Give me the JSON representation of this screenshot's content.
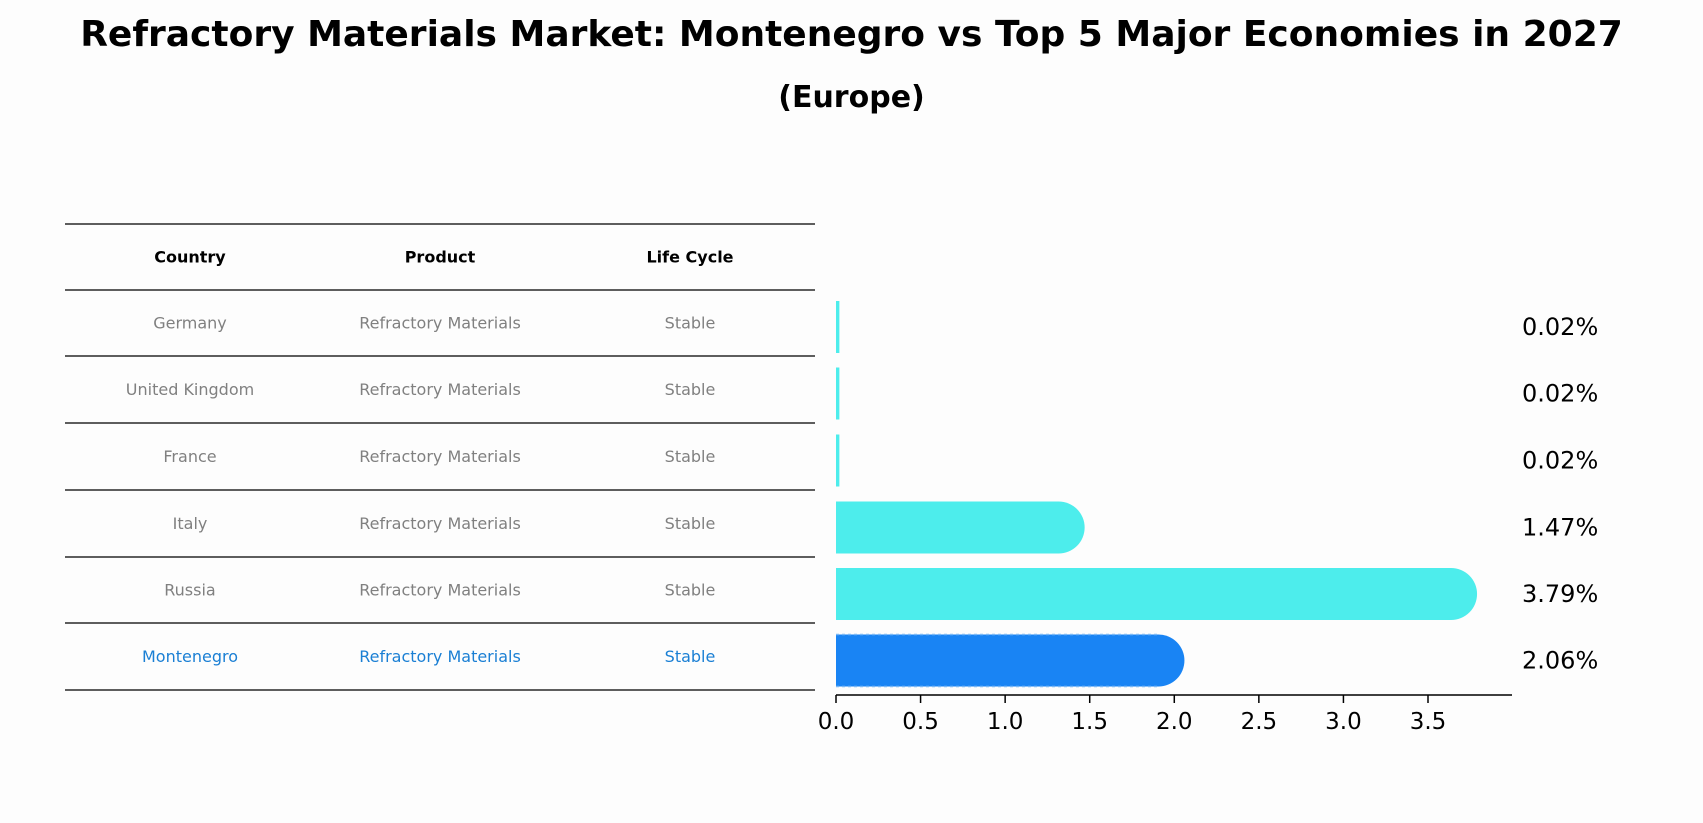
{
  "title": "Refractory Materials Market: Montenegro vs Top 5 Major Economies in 2027",
  "subtitle": "(Europe)",
  "table": {
    "headers": [
      "Country",
      "Product",
      "Life Cycle"
    ],
    "rows": [
      [
        "Germany",
        "Refractory Materials",
        "Stable"
      ],
      [
        "United Kingdom",
        "Refractory Materials",
        "Stable"
      ],
      [
        "France",
        "Refractory Materials",
        "Stable"
      ],
      [
        "Italy",
        "Refractory Materials",
        "Stable"
      ],
      [
        "Russia",
        "Refractory Materials",
        "Stable"
      ],
      [
        "Montenegro",
        "Refractory Materials",
        "Stable"
      ]
    ],
    "highlight_row": 5
  },
  "colors": {
    "bar": "#4dedec",
    "highlight": "#1984f4",
    "highlight_text": "#1a7fd4",
    "muted_text": "#808080"
  },
  "chart_data": {
    "type": "bar",
    "orientation": "horizontal",
    "categories": [
      "Germany",
      "United Kingdom",
      "France",
      "Italy",
      "Russia",
      "Montenegro"
    ],
    "values": [
      0.02,
      0.02,
      0.02,
      1.47,
      3.79,
      2.06
    ],
    "value_labels": [
      "0.02%",
      "0.02%",
      "0.02%",
      "1.47%",
      "3.79%",
      "2.06%"
    ],
    "xlim": [
      0,
      4.0
    ],
    "xticks": [
      0.0,
      0.5,
      1.0,
      1.5,
      2.0,
      2.5,
      3.0,
      3.5
    ],
    "xtick_labels": [
      "0.0",
      "0.5",
      "1.0",
      "1.5",
      "2.0",
      "2.5",
      "3.0",
      "3.5"
    ],
    "highlight": "Montenegro",
    "grid": false
  }
}
